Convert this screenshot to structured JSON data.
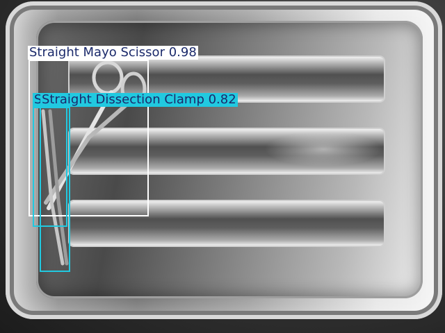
{
  "detections": [
    {
      "label": "Straight Mayo Scissor 0.98",
      "class": "Straight Mayo Scissor",
      "confidence": 0.98,
      "color": "#ffffff"
    },
    {
      "label": "Straight Dissection Clamp 0.82",
      "class": "Straight Dissection Clamp",
      "confidence": 0.82,
      "color": "#21c9e0"
    },
    {
      "label": "S",
      "class": "Straight Dissection Clamp",
      "confidence": null,
      "color": "#21c9e0"
    }
  ]
}
